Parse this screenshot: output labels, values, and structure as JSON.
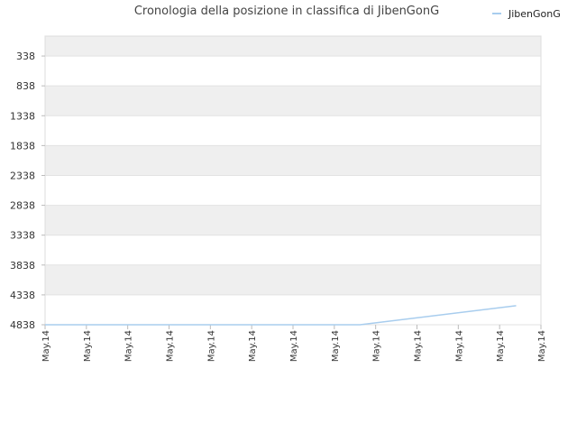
{
  "chart_data": {
    "type": "line",
    "title": "Cronologia della posizione in classifica di JibenGonG",
    "xlabel": "",
    "ylabel": "",
    "y_inverted": true,
    "ylim": [
      4838,
      0
    ],
    "y_ticks": [
      338,
      838,
      1338,
      1838,
      2338,
      2838,
      3338,
      3838,
      4338,
      4838
    ],
    "x_tick_labels": [
      "May.14",
      "May.14",
      "May.14",
      "May.14",
      "May.14",
      "May.14",
      "May.14",
      "May.14",
      "May.14",
      "May.14",
      "May.14",
      "May.14",
      "May.14"
    ],
    "legend_position": "top-right",
    "grid": true,
    "series": [
      {
        "name": "JibenGonG",
        "color": "#a8cdee",
        "points": [
          {
            "x": 0,
            "y": 4838
          },
          {
            "x": 0.635,
            "y": 4838
          },
          {
            "x": 0.95,
            "y": 4520
          }
        ]
      }
    ]
  }
}
